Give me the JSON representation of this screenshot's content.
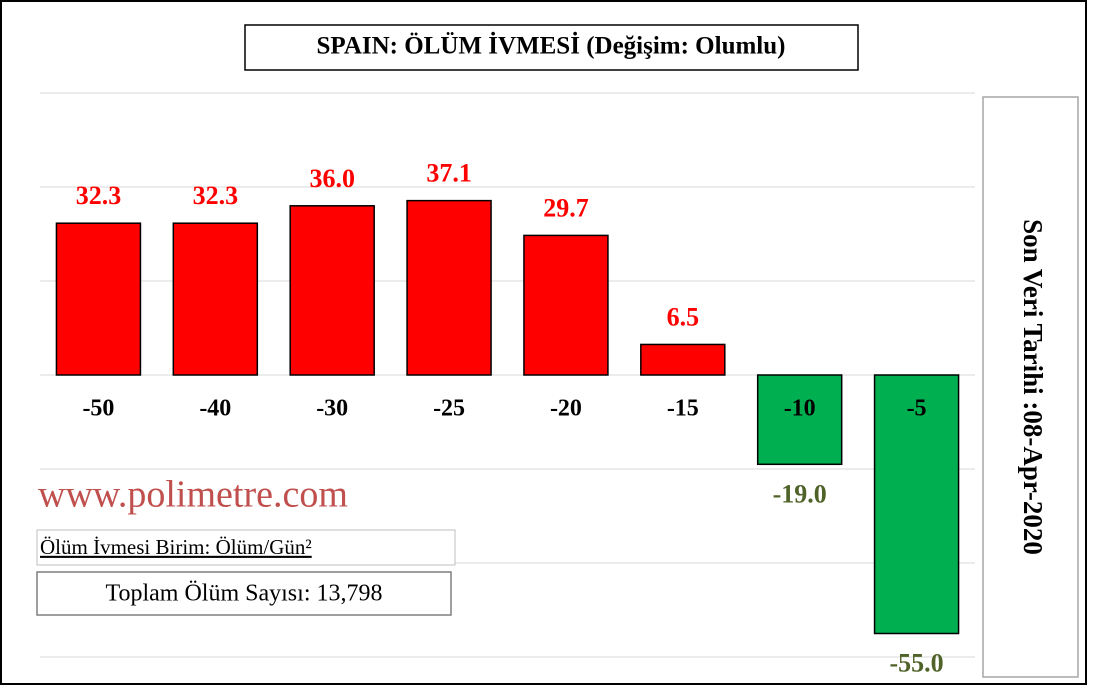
{
  "chart_data": {
    "type": "bar",
    "title": "SPAIN: ÖLÜM İVMESİ  (Değişim: Olumlu)",
    "categories": [
      "-50",
      "-40",
      "-30",
      "-25",
      "-20",
      "-15",
      "-10",
      "-5"
    ],
    "values": [
      32.3,
      32.3,
      36.0,
      37.1,
      29.7,
      6.5,
      -19.0,
      -55.0
    ],
    "value_labels": [
      "32.3",
      "32.3",
      "36.0",
      "37.1",
      "29.7",
      "6.5",
      "-19.0",
      "-55.0"
    ],
    "color": "#ff0000",
    "negative_color": "#00b050",
    "value_label_color": "#ff0000",
    "negative_value_label_color": "#4f6228",
    "ylim": [
      -60,
      60
    ],
    "yticks": [
      -60,
      -40,
      -20,
      0,
      20,
      40,
      60
    ],
    "grid": true,
    "annotations": {
      "website": "www.polimetre.com",
      "unit": "Ölüm İvmesi Birim: Ölüm/Gün²",
      "total": "Toplam Ölüm Sayısı: 13,798",
      "last_date": "Son Veri Tarihi :08-Apr-2020"
    }
  }
}
